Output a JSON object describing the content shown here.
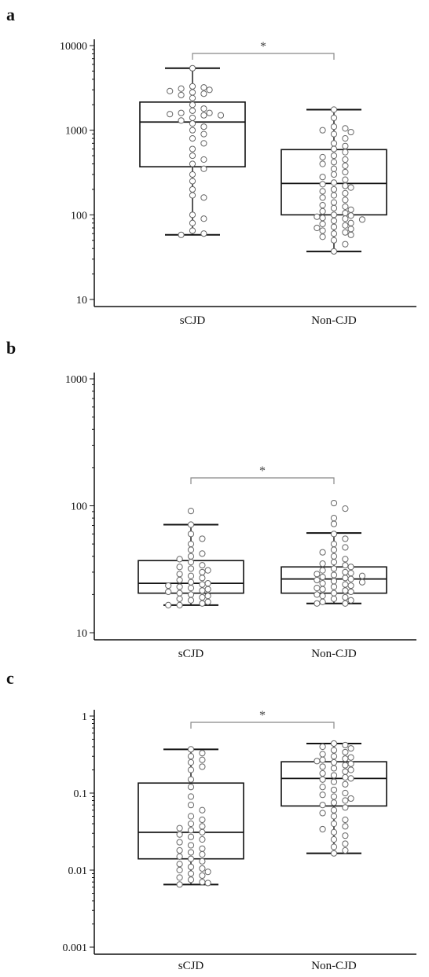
{
  "panels": [
    {
      "letter": "a",
      "chart_data": {
        "type": "box",
        "yscale": "log",
        "ylim": [
          10,
          10000
        ],
        "yticks": [
          "10",
          "100",
          "1000",
          "10000"
        ],
        "categories": [
          "sCJD",
          "Non-CJD"
        ],
        "boxes": [
          {
            "category": "sCJD",
            "whisker_low": 58,
            "q1": 370,
            "median": 1250,
            "q3": 2150,
            "whisker_high": 5400,
            "points": [
              5400,
              3300,
              3200,
              3100,
              3000,
              2900,
              2800,
              2700,
              2600,
              2400,
              2000,
              1800,
              1700,
              1600,
              1600,
              1550,
              1500,
              1500,
              1400,
              1300,
              1200,
              1100,
              1000,
              900,
              800,
              700,
              600,
              500,
              450,
              400,
              350,
              300,
              250,
              200,
              170,
              160,
              100,
              90,
              80,
              65,
              60,
              58
            ]
          },
          {
            "category": "Non-CJD",
            "whisker_low": 37,
            "q1": 100,
            "median": 235,
            "q3": 590,
            "whisker_high": 1750,
            "points": [
              1750,
              1400,
              1100,
              1050,
              1000,
              950,
              900,
              800,
              700,
              650,
              600,
              550,
              500,
              480,
              450,
              420,
              400,
              380,
              350,
              320,
              300,
              280,
              260,
              240,
              230,
              220,
              210,
              200,
              190,
              180,
              170,
              160,
              150,
              140,
              130,
              125,
              120,
              115,
              110,
              105,
              100,
              98,
              95,
              92,
              90,
              88,
              85,
              80,
              78,
              75,
              72,
              70,
              68,
              65,
              62,
              60,
              58,
              55,
              50,
              45,
              37
            ]
          }
        ],
        "significance": "*"
      }
    },
    {
      "letter": "b",
      "chart_data": {
        "type": "box",
        "yscale": "log",
        "ylim": [
          10,
          1000
        ],
        "yticks": [
          "10",
          "100",
          "1000"
        ],
        "categories": [
          "sCJD",
          "Non-CJD"
        ],
        "boxes": [
          {
            "category": "sCJD",
            "whisker_low": 16.5,
            "q1": 20.5,
            "median": 24.5,
            "q3": 37,
            "whisker_high": 71,
            "points": [
              91,
              71,
              60,
              55,
              50,
              45,
              42,
              40,
              38,
              36,
              34,
              33,
              32,
              31,
              30,
              29,
              28,
              27,
              26,
              25,
              24.5,
              24,
              23.5,
              23,
              22.5,
              22,
              21.5,
              21,
              20.5,
              20,
              19.5,
              19,
              18.5,
              18,
              17.5,
              17,
              16.5,
              16.5
            ]
          },
          {
            "category": "Non-CJD",
            "whisker_low": 17,
            "q1": 20.5,
            "median": 26.5,
            "q3": 33,
            "whisker_high": 61,
            "points": [
              105,
              95,
              80,
              72,
              60,
              55,
              50,
              47,
              45,
              43,
              40,
              38,
              36,
              35,
              34,
              33,
              32,
              31,
              30,
              29.5,
              29,
              28.5,
              28,
              27.5,
              27,
              26.5,
              26,
              25.5,
              25,
              24.5,
              24,
              23.5,
              23,
              22.5,
              22,
              21.5,
              21,
              20.5,
              20,
              19.5,
              19,
              18.5,
              18,
              17.5,
              17,
              17
            ]
          }
        ],
        "significance": "*"
      }
    },
    {
      "letter": "c",
      "chart_data": {
        "type": "box",
        "yscale": "log",
        "ylim": [
          0.001,
          1
        ],
        "yticks": [
          "0.001",
          "0.01",
          "0.1",
          "1"
        ],
        "categories": [
          "sCJD",
          "Non-CJD"
        ],
        "boxes": [
          {
            "category": "sCJD",
            "whisker_low": 0.0065,
            "q1": 0.014,
            "median": 0.031,
            "q3": 0.135,
            "whisker_high": 0.37,
            "points": [
              0.37,
              0.33,
              0.3,
              0.27,
              0.25,
              0.22,
              0.2,
              0.15,
              0.12,
              0.09,
              0.07,
              0.06,
              0.05,
              0.045,
              0.04,
              0.037,
              0.035,
              0.033,
              0.031,
              0.029,
              0.027,
              0.025,
              0.023,
              0.021,
              0.019,
              0.018,
              0.017,
              0.016,
              0.015,
              0.014,
              0.013,
              0.012,
              0.011,
              0.0105,
              0.01,
              0.0095,
              0.009,
              0.0085,
              0.008,
              0.0075,
              0.007,
              0.0068,
              0.0065
            ]
          },
          {
            "category": "Non-CJD",
            "whisker_low": 0.0165,
            "q1": 0.068,
            "median": 0.155,
            "q3": 0.255,
            "whisker_high": 0.44,
            "points": [
              0.44,
              0.42,
              0.4,
              0.38,
              0.36,
              0.34,
              0.32,
              0.3,
              0.29,
              0.28,
              0.27,
              0.26,
              0.25,
              0.24,
              0.23,
              0.22,
              0.21,
              0.2,
              0.19,
              0.18,
              0.17,
              0.16,
              0.155,
              0.15,
              0.14,
              0.13,
              0.12,
              0.11,
              0.1,
              0.095,
              0.09,
              0.085,
              0.08,
              0.075,
              0.07,
              0.065,
              0.06,
              0.055,
              0.05,
              0.045,
              0.04,
              0.037,
              0.034,
              0.031,
              0.028,
              0.025,
              0.022,
              0.02,
              0.018,
              0.0165
            ]
          }
        ],
        "significance": "*"
      }
    }
  ]
}
